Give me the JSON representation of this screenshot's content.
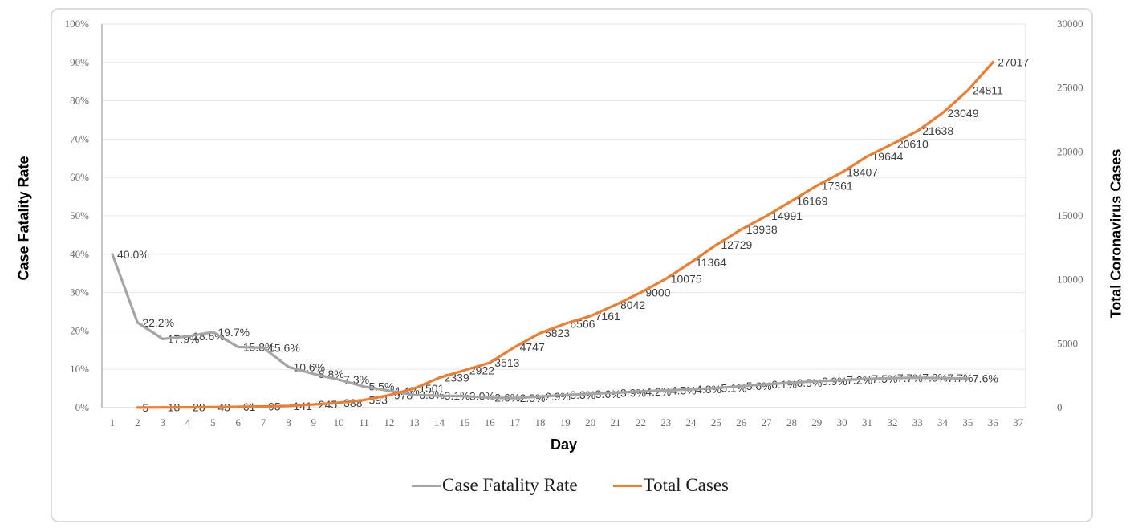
{
  "chart_data": {
    "type": "line",
    "title": "",
    "xlabel": "Day",
    "ylabel_left": "Case Fatality Rate",
    "ylabel_right": "Total Coronavirus Cases",
    "grid": true,
    "legend_position": "bottom",
    "x_ticks": [
      1,
      2,
      3,
      4,
      5,
      6,
      7,
      8,
      9,
      10,
      11,
      12,
      13,
      14,
      15,
      16,
      17,
      18,
      19,
      20,
      21,
      22,
      23,
      24,
      25,
      26,
      27,
      28,
      29,
      30,
      31,
      32,
      33,
      34,
      35,
      36,
      37
    ],
    "left_axis": {
      "min": 0,
      "max": 100,
      "ticks": [
        "0%",
        "10%",
        "20%",
        "30%",
        "40%",
        "50%",
        "60%",
        "70%",
        "80%",
        "90%",
        "100%"
      ]
    },
    "right_axis": {
      "min": 0,
      "max": 30000,
      "ticks": [
        "0",
        "5000",
        "10000",
        "15000",
        "20000",
        "25000",
        "30000"
      ]
    },
    "series": [
      {
        "name": "Case Fatality Rate",
        "axis": "left",
        "color": "#A5A5A5",
        "days": [
          1,
          2,
          3,
          4,
          5,
          6,
          7,
          8,
          9,
          10,
          11,
          12,
          13,
          14,
          15,
          16,
          17,
          18,
          19,
          20,
          21,
          22,
          23,
          24,
          25,
          26,
          27,
          28,
          29,
          30,
          31,
          32,
          33,
          34,
          35
        ],
        "values": [
          40.0,
          22.2,
          17.9,
          18.6,
          19.7,
          15.8,
          15.6,
          10.6,
          8.8,
          7.3,
          5.5,
          4.4,
          3.3,
          3.1,
          3.0,
          2.6,
          2.5,
          2.9,
          3.3,
          3.6,
          3.9,
          4.2,
          4.5,
          4.8,
          5.1,
          5.6,
          6.1,
          6.5,
          6.9,
          7.2,
          7.5,
          7.7,
          7.8,
          7.7,
          7.6
        ],
        "labels": [
          "40.0%",
          "22.2%",
          "17.9%",
          "18.6%",
          "19.7%",
          "15.8%",
          "15.6%",
          "10.6%",
          "8.8%",
          "7.3%",
          "5.5%",
          "4.4%",
          "3.3%",
          "3.1%",
          "3.0%",
          "2.6%",
          "2.5%",
          "2.9%",
          "3.3%",
          "3.6%",
          "3.9%",
          "4.2%",
          "4.5%",
          "4.8%",
          "5.1%",
          "5.6%",
          "6.1%",
          "6.5%",
          "6.9%",
          "7.2%",
          "7.5%",
          "7.7%",
          "7.8%",
          "7.7%",
          "7.6%"
        ]
      },
      {
        "name": "Total Cases",
        "axis": "right",
        "color": "#ED7D31",
        "days": [
          2,
          3,
          4,
          5,
          6,
          7,
          8,
          9,
          10,
          11,
          12,
          13,
          14,
          15,
          16,
          17,
          18,
          19,
          20,
          21,
          22,
          23,
          24,
          25,
          26,
          27,
          28,
          29,
          30,
          31,
          32,
          33,
          34,
          35,
          36
        ],
        "values": [
          5,
          18,
          28,
          43,
          61,
          95,
          141,
          245,
          388,
          593,
          978,
          1501,
          2339,
          2922,
          3513,
          4747,
          5823,
          6566,
          7161,
          8042,
          9000,
          10075,
          11364,
          12729,
          13938,
          14991,
          16169,
          17361,
          18407,
          19644,
          20610,
          21638,
          23049,
          24811,
          27017
        ],
        "labels": [
          "5",
          "18",
          "28",
          "43",
          "61",
          "95",
          "141",
          "245",
          "388",
          "593",
          "978",
          "1501",
          "2339",
          "2922",
          "3513",
          "4747",
          "5823",
          "6566",
          "7161",
          "8042",
          "9000",
          "10075",
          "11364",
          "12729",
          "13938",
          "14991",
          "16169",
          "17361",
          "18407",
          "19644",
          "20610",
          "21638",
          "23049",
          "24811",
          "27017"
        ]
      }
    ]
  },
  "axis_titles": {
    "left": "Case Fatality Rate",
    "right": "Total Coronavirus Cases",
    "x": "Day"
  },
  "legend": {
    "items": [
      {
        "label": "Case Fatality Rate",
        "color": "#A5A5A5"
      },
      {
        "label": "Total Cases",
        "color": "#ED7D31"
      }
    ]
  }
}
